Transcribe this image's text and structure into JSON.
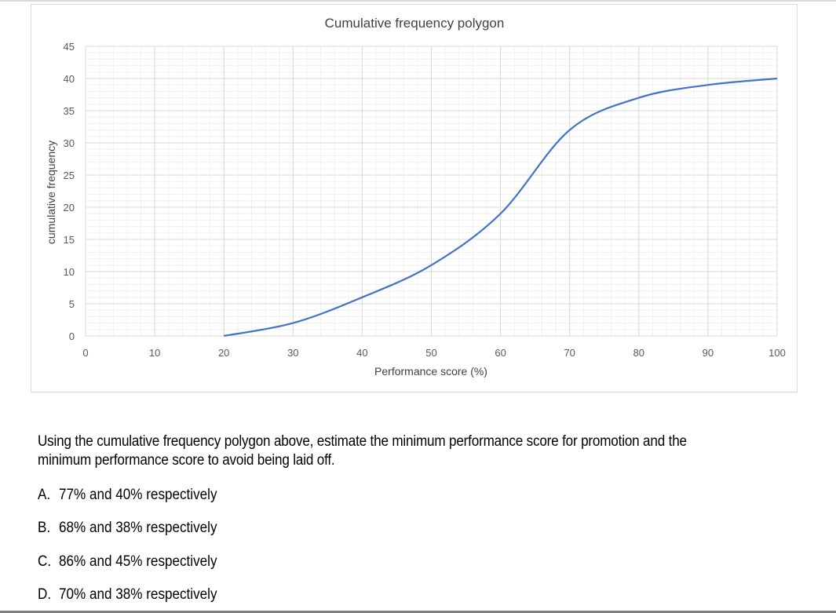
{
  "chart_data": {
    "type": "line",
    "title": "Cumulative frequency polygon",
    "xlabel": "Performance score (%)",
    "ylabel": "cumulative frequency",
    "xlim": [
      0,
      100
    ],
    "ylim": [
      0,
      45
    ],
    "xticks": [
      0,
      10,
      20,
      30,
      40,
      50,
      60,
      70,
      80,
      90,
      100
    ],
    "yticks": [
      0,
      5,
      10,
      15,
      20,
      25,
      30,
      35,
      40,
      45
    ],
    "grid": true,
    "minor_grid": true,
    "legend": "none",
    "series": [
      {
        "color": "#4472c4",
        "x": [
          20,
          30,
          40,
          50,
          60,
          70,
          80,
          90,
          100
        ],
        "y": [
          0,
          2,
          6,
          11,
          19,
          32,
          37,
          39,
          40
        ]
      }
    ]
  },
  "question": {
    "text": "Using the cumulative frequency polygon above, estimate the minimum performance score for promotion and the minimum performance score to avoid being laid off.",
    "options": [
      {
        "letter": "A.",
        "text": "77% and 40% respectively"
      },
      {
        "letter": "B.",
        "text": "68% and 38% respectively"
      },
      {
        "letter": "C.",
        "text": "86% and 45% respectively"
      },
      {
        "letter": "D.",
        "text": "70% and 38% respectively"
      }
    ]
  }
}
